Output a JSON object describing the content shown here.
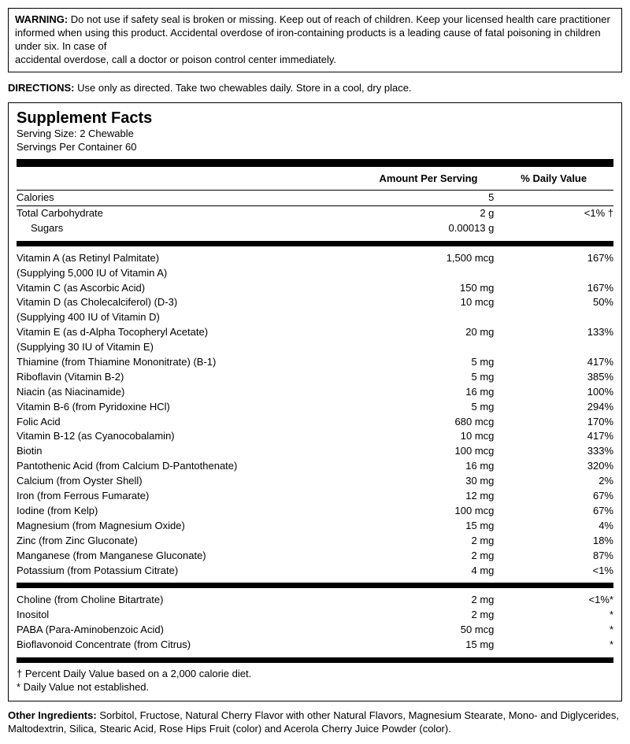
{
  "warning": {
    "label": "WARNING:",
    "text": "Do not use if safety seal is broken or missing. Keep out of reach of children. Keep your licensed health care practitioner informed when using this product. Accidental overdose of iron-containing products is a leading cause of fatal poisoning in children under six. In case of",
    "text2": "accidental overdose, call a doctor or poison control center immediately."
  },
  "directions": {
    "label": "DIRECTIONS:",
    "text": "Use only as directed. Take two chewables daily.  Store in a cool, dry place."
  },
  "facts": {
    "title": "Supplement Facts",
    "serving_size": "Serving Size: 2 Chewable",
    "servings_per": "Servings Per Container 60",
    "header_amt": "Amount Per Serving",
    "header_dv": "% Daily Value",
    "calories": {
      "name": "Calories",
      "amt": "5",
      "dv": ""
    },
    "carb": {
      "name": "Total Carbohydrate",
      "amt": "2 g",
      "dv": "<1% †"
    },
    "sugars": {
      "name": "Sugars",
      "amt": "0.00013 g",
      "dv": ""
    },
    "rows": [
      {
        "name": "Vitamin A (as Retinyl Palmitate)",
        "amt": "1,500 mcg",
        "dv": "167%"
      },
      {
        "name": "(Supplying 5,000 IU of Vitamin A)",
        "amt": "",
        "dv": ""
      },
      {
        "name": "Vitamin C (as Ascorbic Acid)",
        "amt": "150 mg",
        "dv": "167%"
      },
      {
        "name": "Vitamin D (as Cholecalciferol) (D-3)",
        "amt": "10 mcg",
        "dv": "50%"
      },
      {
        "name": "(Supplying 400 IU of Vitamin D)",
        "amt": "",
        "dv": ""
      },
      {
        "name": "Vitamin E (as d-Alpha Tocopheryl Acetate)",
        "amt": "20 mg",
        "dv": "133%"
      },
      {
        "name": "(Supplying 30 IU of Vitamin E)",
        "amt": "",
        "dv": ""
      },
      {
        "name": "Thiamine (from Thiamine Mononitrate) (B-1)",
        "amt": "5 mg",
        "dv": "417%"
      },
      {
        "name": "Riboflavin (Vitamin B-2)",
        "amt": "5 mg",
        "dv": "385%"
      },
      {
        "name": "Niacin (as Niacinamide)",
        "amt": "16 mg",
        "dv": "100%"
      },
      {
        "name": "Vitamin B-6 (from Pyridoxine HCl)",
        "amt": "5 mg",
        "dv": "294%"
      },
      {
        "name": "Folic Acid",
        "amt": "680 mcg",
        "dv": "170%"
      },
      {
        "name": "Vitamin B-12 (as Cyanocobalamin)",
        "amt": "10 mcg",
        "dv": "417%"
      },
      {
        "name": "Biotin",
        "amt": "100 mcg",
        "dv": "333%"
      },
      {
        "name": "Pantothenic Acid (from Calcium D-Pantothenate)",
        "amt": "16 mg",
        "dv": "320%"
      },
      {
        "name": "Calcium (from Oyster Shell)",
        "amt": "30 mg",
        "dv": "2%"
      },
      {
        "name": "Iron (from Ferrous Fumarate)",
        "amt": "12 mg",
        "dv": "67%"
      },
      {
        "name": "Iodine (from Kelp)",
        "amt": "100 mcg",
        "dv": "67%"
      },
      {
        "name": "Magnesium (from Magnesium Oxide)",
        "amt": "15 mg",
        "dv": "4%"
      },
      {
        "name": "Zinc (from Zinc Gluconate)",
        "amt": "2 mg",
        "dv": "18%"
      },
      {
        "name": "Manganese (from Manganese Gluconate)",
        "amt": "2 mg",
        "dv": "87%"
      },
      {
        "name": "Potassium (from Potassium Citrate)",
        "amt": "4 mg",
        "dv": "<1%"
      }
    ],
    "rows2": [
      {
        "name": "Choline (from Choline Bitartrate)",
        "amt": "2 mg",
        "dv": "<1%*"
      },
      {
        "name": "Inositol",
        "amt": "2 mg",
        "dv": "*"
      },
      {
        "name": "PABA (Para-Aminobenzoic Acid)",
        "amt": "50 mcg",
        "dv": "*"
      },
      {
        "name": "Bioflavonoid Concentrate (from Citrus)",
        "amt": "15 mg",
        "dv": "*"
      }
    ],
    "footnote1": "† Percent Daily Value based on a 2,000 calorie diet.",
    "footnote2": "* Daily Value not established."
  },
  "other": {
    "label": "Other Ingredients:",
    "text": "Sorbitol, Fructose, Natural Cherry Flavor with other Natural Flavors, Magnesium Stearate, Mono- and Diglycerides, Maltodextrin, Silica, Stearic Acid, Rose Hips Fruit (color) and Acerola Cherry Juice Powder (color)."
  }
}
